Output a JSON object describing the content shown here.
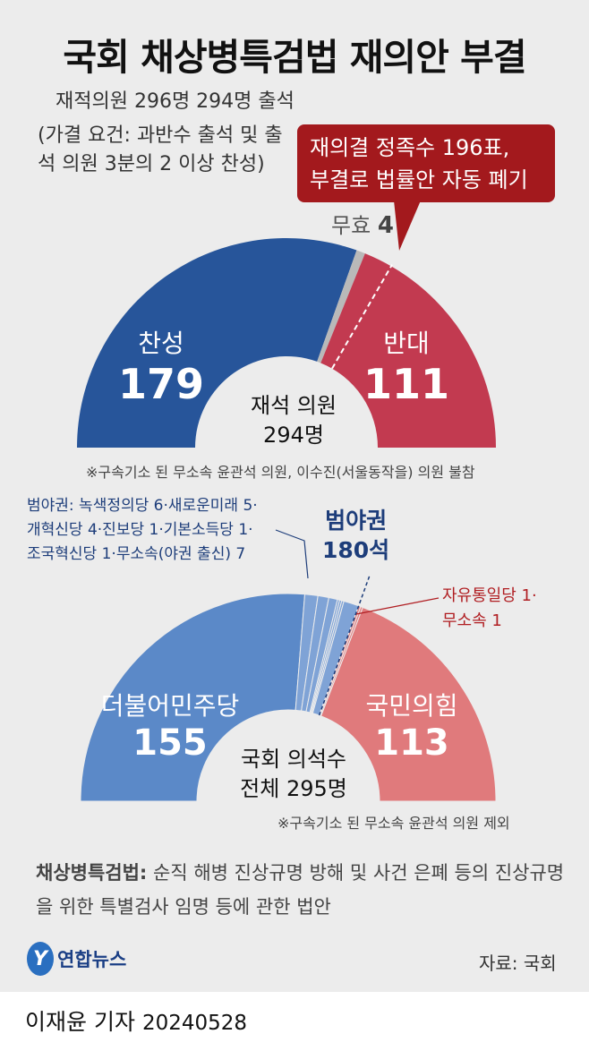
{
  "title": "국회 채상병특검법 재의안 부결",
  "intro": "재적의원 296명 294명 출석",
  "condition": "(가결 요건: 과반수 출석 및 출석 의원 3분의 2 이상 찬성)",
  "callout": {
    "line1": "재의결 정족수 196표,",
    "line2": "부결로 법률안 자동 폐기"
  },
  "chart_data": [
    {
      "type": "pie",
      "title": "",
      "center_label": {
        "line1": "재석 의원",
        "line2": "294명"
      },
      "slices": [
        {
          "label": "찬성",
          "value": 179,
          "color": "#27559a"
        },
        {
          "label": "무효",
          "value": 4,
          "color": "#b9b9b9"
        },
        {
          "label": "반대",
          "value": 111,
          "color": "#c23a50"
        }
      ],
      "threshold_line": 196,
      "note": "※구속기소 된 무소속 윤관석 의원, 이수진(서울동작을) 의원 불참"
    },
    {
      "type": "pie",
      "title": "",
      "center_label": {
        "line1": "국회 의석수",
        "line2": "전체 295명"
      },
      "slices": [
        {
          "label": "더불어민주당",
          "value": 155,
          "color": "#5b89c8"
        },
        {
          "label": "녹색정의당",
          "value": 6,
          "color": "#7fa3d6"
        },
        {
          "label": "새로운미래",
          "value": 5,
          "color": "#7fa3d6"
        },
        {
          "label": "개혁신당",
          "value": 4,
          "color": "#7fa3d6"
        },
        {
          "label": "진보당",
          "value": 1,
          "color": "#7fa3d6"
        },
        {
          "label": "기본소득당",
          "value": 1,
          "color": "#7fa3d6"
        },
        {
          "label": "조국혁신당",
          "value": 1,
          "color": "#7fa3d6"
        },
        {
          "label": "무소속(야권 출신)",
          "value": 7,
          "color": "#7fa3d6"
        },
        {
          "label": "무소속",
          "value": 1,
          "color": "#e27f80"
        },
        {
          "label": "자유통일당",
          "value": 1,
          "color": "#e27f80"
        },
        {
          "label": "국민의힘",
          "value": 113,
          "color": "#e07a7c"
        }
      ],
      "opposition_total": {
        "label": "범야권",
        "value": "180석"
      },
      "opposition_detail": [
        "범야권: 녹색정의당 6·새로운미래 5·",
        "개혁신당 4·진보당 1·기본소득당 1·",
        "조국혁신당 1·무소속(야권 출신) 7"
      ],
      "minor_right": [
        "자유통일당 1·",
        "무소속 1"
      ],
      "note": "※구속기소 된 무소속 윤관석 의원 제외"
    }
  ],
  "labels": {
    "yes_label": "찬성",
    "yes_value": "179",
    "invalid_label": "무효",
    "invalid_value": "4",
    "no_label": "반대",
    "no_value": "111",
    "dp_label": "더불어민주당",
    "dp_value": "155",
    "ppp_label": "국민의힘",
    "ppp_value": "113"
  },
  "definition": {
    "term": "채상병특검법:",
    "text": " 순직 해병 진상규명 방해 및 사건 은폐 등의 진상규명을 위한 특별검사 임명 등에 관한 법안"
  },
  "logo": "연합뉴스",
  "source": "자료: 국회",
  "byline": {
    "reporter": "이재윤 기자",
    "date": "20240528"
  }
}
